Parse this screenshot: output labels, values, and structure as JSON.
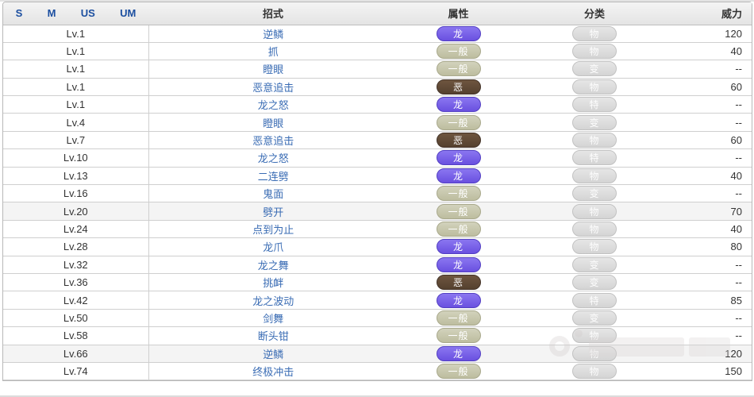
{
  "table": {
    "header": {
      "game_columns": [
        "S",
        "M",
        "US",
        "UM"
      ],
      "move": "招式",
      "type": "属性",
      "category": "分类",
      "power": "威力"
    },
    "rows": [
      {
        "level": "Lv.1",
        "move": "逆鳞",
        "type": {
          "key": "dragon",
          "label": "龙"
        },
        "category": "物",
        "power": "120",
        "highlight": false
      },
      {
        "level": "Lv.1",
        "move": "抓",
        "type": {
          "key": "normal",
          "label": "一般"
        },
        "category": "物",
        "power": "40",
        "highlight": false
      },
      {
        "level": "Lv.1",
        "move": "瞪眼",
        "type": {
          "key": "normal",
          "label": "一般"
        },
        "category": "变",
        "power": "--",
        "highlight": false
      },
      {
        "level": "Lv.1",
        "move": "恶意追击",
        "type": {
          "key": "dark",
          "label": "恶"
        },
        "category": "物",
        "power": "60",
        "highlight": false
      },
      {
        "level": "Lv.1",
        "move": "龙之怒",
        "type": {
          "key": "dragon",
          "label": "龙"
        },
        "category": "特",
        "power": "--",
        "highlight": false
      },
      {
        "level": "Lv.4",
        "move": "瞪眼",
        "type": {
          "key": "normal",
          "label": "一般"
        },
        "category": "变",
        "power": "--",
        "highlight": false
      },
      {
        "level": "Lv.7",
        "move": "恶意追击",
        "type": {
          "key": "dark",
          "label": "恶"
        },
        "category": "物",
        "power": "60",
        "highlight": false
      },
      {
        "level": "Lv.10",
        "move": "龙之怒",
        "type": {
          "key": "dragon",
          "label": "龙"
        },
        "category": "特",
        "power": "--",
        "highlight": false
      },
      {
        "level": "Lv.13",
        "move": "二连劈",
        "type": {
          "key": "dragon",
          "label": "龙"
        },
        "category": "物",
        "power": "40",
        "highlight": false
      },
      {
        "level": "Lv.16",
        "move": "鬼面",
        "type": {
          "key": "normal",
          "label": "一般"
        },
        "category": "变",
        "power": "--",
        "highlight": false
      },
      {
        "level": "Lv.20",
        "move": "劈开",
        "type": {
          "key": "normal",
          "label": "一般"
        },
        "category": "物",
        "power": "70",
        "highlight": true
      },
      {
        "level": "Lv.24",
        "move": "点到为止",
        "type": {
          "key": "normal",
          "label": "一般"
        },
        "category": "物",
        "power": "40",
        "highlight": false
      },
      {
        "level": "Lv.28",
        "move": "龙爪",
        "type": {
          "key": "dragon",
          "label": "龙"
        },
        "category": "物",
        "power": "80",
        "highlight": false
      },
      {
        "level": "Lv.32",
        "move": "龙之舞",
        "type": {
          "key": "dragon",
          "label": "龙"
        },
        "category": "变",
        "power": "--",
        "highlight": false
      },
      {
        "level": "Lv.36",
        "move": "挑衅",
        "type": {
          "key": "dark",
          "label": "恶"
        },
        "category": "变",
        "power": "--",
        "highlight": false
      },
      {
        "level": "Lv.42",
        "move": "龙之波动",
        "type": {
          "key": "dragon",
          "label": "龙"
        },
        "category": "特",
        "power": "85",
        "highlight": false
      },
      {
        "level": "Lv.50",
        "move": "剑舞",
        "type": {
          "key": "normal",
          "label": "一般"
        },
        "category": "变",
        "power": "--",
        "highlight": false
      },
      {
        "level": "Lv.58",
        "move": "断头钳",
        "type": {
          "key": "normal",
          "label": "一般"
        },
        "category": "物",
        "power": "--",
        "highlight": false
      },
      {
        "level": "Lv.66",
        "move": "逆鳞",
        "type": {
          "key": "dragon",
          "label": "龙"
        },
        "category": "物",
        "power": "120",
        "highlight": true
      },
      {
        "level": "Lv.74",
        "move": "终极冲击",
        "type": {
          "key": "normal",
          "label": "一般"
        },
        "category": "物",
        "power": "150",
        "highlight": false
      }
    ]
  },
  "colors": {
    "type_dragon": "#6a50e0",
    "type_normal": "#bdbd9f",
    "type_dark": "#55412f",
    "category_pill": "#d4d4d4",
    "move_link": "#3a6cb4",
    "version_header_text": "#1c4fa0",
    "header_background": "#e9e9e9",
    "row_highlight": "#f4f4f4"
  }
}
